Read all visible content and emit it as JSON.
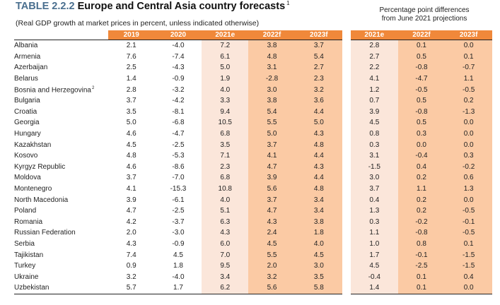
{
  "title": {
    "number": "TABLE 2.2.2",
    "text": "Europe and Central Asia country forecasts",
    "footnote_mark": "1"
  },
  "subtitle": "(Real GDP growth at market prices in percent, unless indicated otherwise)",
  "right_title": {
    "line1": "Percentage point differences",
    "line2": "from June 2021 projections"
  },
  "colors": {
    "header": "#f0883a",
    "col_2021e": "#fbe6da",
    "col_forecast": "#fbcaa4",
    "title_number": "#4a6f8f"
  },
  "left_headers": [
    "2019",
    "2020",
    "2021e",
    "2022f",
    "2023f"
  ],
  "right_headers": [
    "2021e",
    "2022f",
    "2023f"
  ],
  "rows": [
    {
      "country": "Albania",
      "note": "",
      "values": [
        "2.1",
        "-4.0",
        "7.2",
        "3.8",
        "3.7"
      ],
      "diffs": [
        "2.8",
        "0.1",
        "0.0"
      ]
    },
    {
      "country": "Armenia",
      "note": "",
      "values": [
        "7.6",
        "-7.4",
        "6.1",
        "4.8",
        "5.4"
      ],
      "diffs": [
        "2.7",
        "0.5",
        "0.1"
      ]
    },
    {
      "country": "Azerbaijan",
      "note": "",
      "values": [
        "2.5",
        "-4.3",
        "5.0",
        "3.1",
        "2.7"
      ],
      "diffs": [
        "2.2",
        "-0.8",
        "-0.7"
      ]
    },
    {
      "country": "Belarus",
      "note": "",
      "values": [
        "1.4",
        "-0.9",
        "1.9",
        "-2.8",
        "2.3"
      ],
      "diffs": [
        "4.1",
        "-4.7",
        "1.1"
      ]
    },
    {
      "country": "Bosnia and Herzegovina",
      "note": "2",
      "values": [
        "2.8",
        "-3.2",
        "4.0",
        "3.0",
        "3.2"
      ],
      "diffs": [
        "1.2",
        "-0.5",
        "-0.5"
      ]
    },
    {
      "country": "Bulgaria",
      "note": "",
      "values": [
        "3.7",
        "-4.2",
        "3.3",
        "3.8",
        "3.6"
      ],
      "diffs": [
        "0.7",
        "0.5",
        "0.2"
      ]
    },
    {
      "country": "Croatia",
      "note": "",
      "values": [
        "3.5",
        "-8.1",
        "9.4",
        "5.4",
        "4.4"
      ],
      "diffs": [
        "3.9",
        "-0.8",
        "-1.3"
      ]
    },
    {
      "country": "Georgia",
      "note": "",
      "values": [
        "5.0",
        "-6.8",
        "10.5",
        "5.5",
        "5.0"
      ],
      "diffs": [
        "4.5",
        "0.5",
        "0.0"
      ]
    },
    {
      "country": "Hungary",
      "note": "",
      "values": [
        "4.6",
        "-4.7",
        "6.8",
        "5.0",
        "4.3"
      ],
      "diffs": [
        "0.8",
        "0.3",
        "0.0"
      ]
    },
    {
      "country": "Kazakhstan",
      "note": "",
      "values": [
        "4.5",
        "-2.5",
        "3.5",
        "3.7",
        "4.8"
      ],
      "diffs": [
        "0.3",
        "0.0",
        "0.0"
      ]
    },
    {
      "country": "Kosovo",
      "note": "",
      "values": [
        "4.8",
        "-5.3",
        "7.1",
        "4.1",
        "4.4"
      ],
      "diffs": [
        "3.1",
        "-0.4",
        "0.3"
      ]
    },
    {
      "country": "Kyrgyz Republic",
      "note": "",
      "values": [
        "4.6",
        "-8.6",
        "2.3",
        "4.7",
        "4.3"
      ],
      "diffs": [
        "-1.5",
        "0.4",
        "-0.2"
      ]
    },
    {
      "country": "Moldova",
      "note": "",
      "values": [
        "3.7",
        "-7.0",
        "6.8",
        "3.9",
        "4.4"
      ],
      "diffs": [
        "3.0",
        "0.2",
        "0.6"
      ]
    },
    {
      "country": "Montenegro",
      "note": "",
      "values": [
        "4.1",
        "-15.3",
        "10.8",
        "5.6",
        "4.8"
      ],
      "diffs": [
        "3.7",
        "1.1",
        "1.3"
      ]
    },
    {
      "country": "North Macedonia",
      "note": "",
      "values": [
        "3.9",
        "-6.1",
        "4.0",
        "3.7",
        "3.4"
      ],
      "diffs": [
        "0.4",
        "0.2",
        "0.0"
      ]
    },
    {
      "country": "Poland",
      "note": "",
      "values": [
        "4.7",
        "-2.5",
        "5.1",
        "4.7",
        "3.4"
      ],
      "diffs": [
        "1.3",
        "0.2",
        "-0.5"
      ]
    },
    {
      "country": "Romania",
      "note": "",
      "values": [
        "4.2",
        "-3.7",
        "6.3",
        "4.3",
        "3.8"
      ],
      "diffs": [
        "0.3",
        "-0.2",
        "-0.1"
      ]
    },
    {
      "country": "Russian Federation",
      "note": "",
      "values": [
        "2.0",
        "-3.0",
        "4.3",
        "2.4",
        "1.8"
      ],
      "diffs": [
        "1.1",
        "-0.8",
        "-0.5"
      ]
    },
    {
      "country": "Serbia",
      "note": "",
      "values": [
        "4.3",
        "-0.9",
        "6.0",
        "4.5",
        "4.0"
      ],
      "diffs": [
        "1.0",
        "0.8",
        "0.1"
      ]
    },
    {
      "country": "Tajikistan",
      "note": "",
      "values": [
        "7.4",
        "4.5",
        "7.0",
        "5.5",
        "4.5"
      ],
      "diffs": [
        "1.7",
        "-0.1",
        "-1.5"
      ]
    },
    {
      "country": "Turkey",
      "note": "",
      "values": [
        "0.9",
        "1.8",
        "9.5",
        "2.0",
        "3.0"
      ],
      "diffs": [
        "4.5",
        "-2.5",
        "-1.5"
      ]
    },
    {
      "country": "Ukraine",
      "note": "",
      "values": [
        "3.2",
        "-4.0",
        "3.4",
        "3.2",
        "3.5"
      ],
      "diffs": [
        "-0.4",
        "0.1",
        "0.4"
      ]
    },
    {
      "country": "Uzbekistan",
      "note": "",
      "values": [
        "5.7",
        "1.7",
        "6.2",
        "5.6",
        "5.8"
      ],
      "diffs": [
        "1.4",
        "0.1",
        "0.0"
      ]
    }
  ]
}
